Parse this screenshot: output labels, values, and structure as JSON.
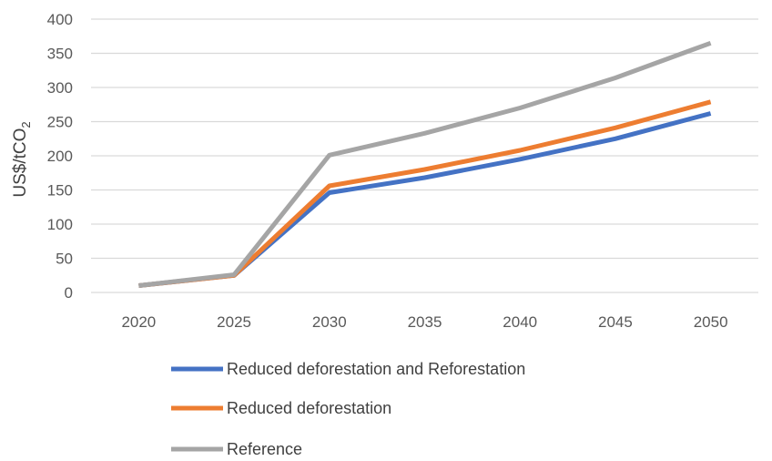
{
  "chart_data": {
    "type": "line",
    "title": "",
    "xlabel": "",
    "ylabel": "US$/tCO",
    "ylabel_subscript": "2",
    "x": [
      "2020",
      "2025",
      "2030",
      "2035",
      "2040",
      "2045",
      "2050"
    ],
    "ylim": [
      0,
      400
    ],
    "yticks": [
      0,
      50,
      100,
      150,
      200,
      250,
      300,
      350,
      400
    ],
    "grid": true,
    "legend_position": "bottom",
    "series": [
      {
        "name": "Reduced deforestation and Reforestation",
        "color": "#4472c4",
        "values": [
          10,
          25,
          146,
          168,
          195,
          225,
          262
        ]
      },
      {
        "name": "Reduced deforestation",
        "color": "#ed7d31",
        "values": [
          10,
          25,
          156,
          180,
          208,
          241,
          279
        ]
      },
      {
        "name": "Reference",
        "color": "#a5a5a5",
        "values": [
          10,
          26,
          201,
          233,
          270,
          314,
          365
        ]
      }
    ]
  }
}
